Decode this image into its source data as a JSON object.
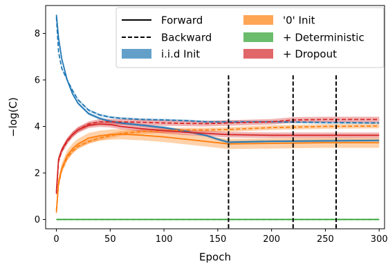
{
  "chart_data": {
    "type": "line",
    "xlabel": "Epoch",
    "ylabel": "−log(C)",
    "xlim": [
      -10,
      305
    ],
    "ylim": [
      -0.4,
      9.2
    ],
    "xticks": [
      0,
      50,
      100,
      150,
      200,
      250,
      300
    ],
    "xtick_labels": [
      "0",
      "50",
      "100",
      "150",
      "200",
      "250",
      "300"
    ],
    "yticks": [
      0,
      2,
      4,
      6,
      8
    ],
    "ytick_labels": [
      "0",
      "2",
      "4",
      "6",
      "8"
    ],
    "grid": false,
    "legend_position": "top-right",
    "legend": {
      "style_entries": [
        {
          "label": "Forward",
          "linestyle": "solid"
        },
        {
          "label": "Backward",
          "linestyle": "dashed"
        }
      ],
      "color_entries": [
        {
          "label": "i.i.d Init",
          "color": "#1f77b4"
        },
        {
          "label": "'0' Init",
          "color": "#ff7f0e"
        },
        {
          "label": "+ Deterministic",
          "color": "#2ca02c"
        },
        {
          "label": "+ Dropout",
          "color": "#d62728"
        }
      ]
    },
    "vlines": [
      160,
      220,
      260
    ],
    "series": [
      {
        "name": "i.i.d Init",
        "direction": "Forward",
        "color": "#1f77b4",
        "band": 0.06,
        "x": [
          0,
          2,
          5,
          10,
          15,
          20,
          30,
          40,
          50,
          60,
          80,
          100,
          120,
          140,
          150,
          160,
          200,
          250,
          300
        ],
        "y": [
          8.8,
          7.8,
          6.9,
          6.0,
          5.4,
          5.0,
          4.55,
          4.35,
          4.22,
          4.15,
          4.05,
          3.95,
          3.8,
          3.6,
          3.45,
          3.32,
          3.36,
          3.38,
          3.4
        ]
      },
      {
        "name": "i.i.d Init",
        "direction": "Backward",
        "color": "#1f77b4",
        "band": 0.05,
        "x": [
          0,
          2,
          5,
          10,
          15,
          20,
          30,
          40,
          50,
          60,
          80,
          100,
          120,
          140,
          160,
          200,
          250,
          300
        ],
        "y": [
          8.7,
          7.2,
          6.5,
          6.0,
          5.55,
          5.15,
          4.7,
          4.5,
          4.4,
          4.35,
          4.3,
          4.28,
          4.25,
          4.2,
          4.2,
          4.2,
          4.17,
          4.15
        ]
      },
      {
        "name": "'0' Init",
        "direction": "Forward",
        "color": "#ff7f0e",
        "band": 0.22,
        "x": [
          0,
          2,
          5,
          10,
          15,
          20,
          30,
          40,
          50,
          60,
          80,
          100,
          120,
          140,
          160,
          200,
          250,
          300
        ],
        "y": [
          0.3,
          1.6,
          2.2,
          2.75,
          3.05,
          3.25,
          3.5,
          3.6,
          3.65,
          3.67,
          3.62,
          3.55,
          3.45,
          3.35,
          3.25,
          3.27,
          3.3,
          3.3
        ]
      },
      {
        "name": "'0' Init",
        "direction": "Backward",
        "color": "#ff7f0e",
        "band": 0.1,
        "x": [
          0,
          2,
          5,
          10,
          15,
          20,
          30,
          40,
          50,
          60,
          80,
          100,
          120,
          140,
          160,
          200,
          250,
          300
        ],
        "y": [
          0.4,
          1.5,
          2.15,
          2.65,
          2.95,
          3.15,
          3.35,
          3.5,
          3.6,
          3.7,
          3.78,
          3.82,
          3.85,
          3.85,
          3.87,
          3.95,
          4.0,
          4.02
        ]
      },
      {
        "name": "+ Dropout",
        "direction": "Forward",
        "color": "#d62728",
        "band": 0.12,
        "x": [
          0,
          2,
          5,
          10,
          15,
          20,
          30,
          40,
          50,
          60,
          80,
          100,
          120,
          140,
          160,
          200,
          250,
          300
        ],
        "y": [
          1.2,
          2.6,
          3.0,
          3.4,
          3.65,
          3.85,
          4.05,
          4.1,
          4.08,
          4.0,
          3.9,
          3.82,
          3.75,
          3.7,
          3.65,
          3.62,
          3.62,
          3.62
        ]
      },
      {
        "name": "+ Dropout",
        "direction": "Backward",
        "color": "#d62728",
        "band": 0.12,
        "x": [
          0,
          2,
          5,
          10,
          15,
          20,
          30,
          40,
          50,
          60,
          80,
          100,
          120,
          140,
          160,
          200,
          220,
          250,
          300
        ],
        "y": [
          1.1,
          2.5,
          2.95,
          3.35,
          3.65,
          3.85,
          4.1,
          4.2,
          4.2,
          4.2,
          4.18,
          4.15,
          4.13,
          4.12,
          4.15,
          4.2,
          4.28,
          4.3,
          4.3
        ]
      },
      {
        "name": "+ Deterministic",
        "direction": "Forward",
        "color": "#2ca02c",
        "band": 0.02,
        "x": [
          0,
          300
        ],
        "y": [
          0.0,
          0.0
        ]
      },
      {
        "name": "+ Deterministic",
        "direction": "Backward",
        "color": "#2ca02c",
        "band": 0.02,
        "x": [
          0,
          300
        ],
        "y": [
          0.0,
          0.0
        ]
      }
    ]
  }
}
